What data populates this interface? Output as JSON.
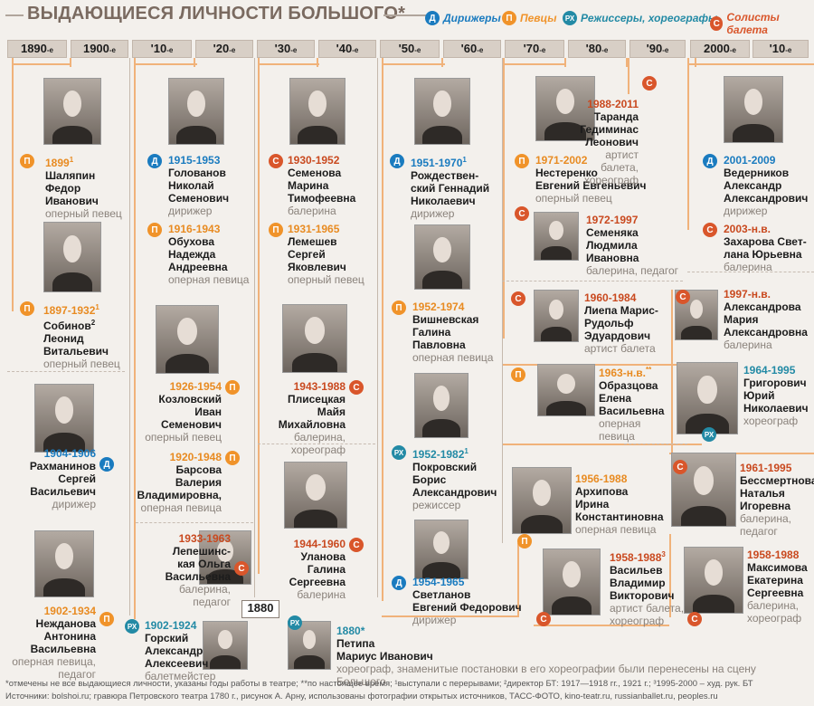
{
  "header": {
    "title": "ВЫДАЮЩИЕСЯ ЛИЧНОСТИ БОЛЬШОГО*",
    "legend": [
      {
        "badge": "Д",
        "label": "Дирижеры",
        "color": "#1a7bbf"
      },
      {
        "badge": "П",
        "label": "Певцы",
        "color": "#f0932a"
      },
      {
        "badge": "РХ",
        "label": "Режиссеры, хореографы",
        "color": "#238aa5"
      },
      {
        "badge": "С",
        "label": "Солисты балета",
        "color": "#d9562b"
      }
    ]
  },
  "decades": [
    "1890",
    "1900",
    "'10",
    "'20",
    "'30",
    "'40",
    "'50",
    "'60",
    "'70",
    "'80",
    "'90",
    "2000",
    "'10"
  ],
  "decade_suffix": "-е",
  "entries": {
    "shalyapin": {
      "badge": "П",
      "years": "1899",
      "sup": "1",
      "name": [
        "Шаляпин",
        "Федор",
        "Иванович"
      ],
      "role": [
        "оперный певец"
      ]
    },
    "sobinov": {
      "badge": "П",
      "years": "1897-1932",
      "sup": "1",
      "name": [
        "Собинов",
        "Леонид",
        "Витальевич"
      ],
      "name_sup": "2",
      "role": [
        "оперный певец"
      ]
    },
    "rakhmaninov": {
      "badge": "Д",
      "years": "1904-1906",
      "name": [
        "Рахманинов",
        "Сергей",
        "Васильевич"
      ],
      "role": [
        "дирижер"
      ]
    },
    "nezhdanova": {
      "badge": "П",
      "years": "1902-1934",
      "name": [
        "Нежданова",
        "Антонина",
        "Васильевна"
      ],
      "role": [
        "оперная певица,",
        "педагог"
      ]
    },
    "golovanov": {
      "badge": "Д",
      "years": "1915-1953",
      "name": [
        "Голованов",
        "Николай",
        "Семенович"
      ],
      "role": [
        "дирижер"
      ]
    },
    "obukhova": {
      "badge": "П",
      "years": "1916-1943",
      "name": [
        "Обухова",
        "Надежда",
        "Андреевна"
      ],
      "role": [
        "оперная певица"
      ]
    },
    "kozlovsky": {
      "badge": "П",
      "years": "1926-1954",
      "name": [
        "Козловский",
        "Иван",
        "Семенович"
      ],
      "role": [
        "оперный певец"
      ]
    },
    "barsova": {
      "badge": "П",
      "years": "1920-1948",
      "name": [
        "Барсова",
        "Валерия",
        "Владимировна,"
      ],
      "role": [
        "оперная певица"
      ]
    },
    "lepeshinskaya": {
      "badge": "С",
      "years": "1933-1963",
      "name": [
        "Лепешинс-",
        "кая Ольга",
        "Васильевна"
      ],
      "role": [
        "балерина,",
        "педагог"
      ]
    },
    "gorsky": {
      "badge": "РХ",
      "years": "1902-1924",
      "name": [
        "Горский",
        "Александр",
        "Алексеевич"
      ],
      "role": [
        "балетмейстер"
      ]
    },
    "semenova": {
      "badge": "С",
      "years": "1930-1952",
      "name": [
        "Семенова",
        "Марина",
        "Тимофеевна"
      ],
      "role": [
        "балерина"
      ]
    },
    "lemeshev": {
      "badge": "П",
      "years": "1931-1965",
      "name": [
        "Лемешев",
        "Сергей",
        "Яковлевич"
      ],
      "role": [
        "оперный певец"
      ]
    },
    "plisetskaya": {
      "badge": "С",
      "years": "1943-1988",
      "name": [
        "Плисецкая",
        "Майя",
        "Михайловна"
      ],
      "role": [
        "балерина,",
        "хореограф"
      ]
    },
    "ulanova": {
      "badge": "С",
      "years": "1944-1960",
      "name": [
        "Уланова",
        "Галина",
        "Сергеевна"
      ],
      "role": [
        "балерина"
      ]
    },
    "rozhdestvensky": {
      "badge": "Д",
      "years": "1951-1970",
      "sup": "1",
      "name": [
        "Рождествен-",
        "ский Геннадий",
        "Николаевич"
      ],
      "role": [
        "дирижер"
      ]
    },
    "vishnevskaya": {
      "badge": "П",
      "years": "1952-1974",
      "name": [
        "Вишневская",
        "Галина",
        "Павловна"
      ],
      "role": [
        "оперная певица"
      ]
    },
    "pokrovsky": {
      "badge": "РХ",
      "years": "1952-1982",
      "sup": "1",
      "name": [
        "Покровский",
        "Борис",
        "Александрович"
      ],
      "role": [
        "режиссер"
      ]
    },
    "svetlanov": {
      "badge": "Д",
      "years": "1954-1965",
      "name": [
        "Светланов",
        "Евгений Федорович"
      ],
      "role": [
        "дирижер"
      ]
    },
    "nesterenko": {
      "badge": "П",
      "years": "1971-2002",
      "name": [
        "Нестеренко",
        "Евгений Евгеньевич"
      ],
      "role": [
        "оперный певец"
      ]
    },
    "semenyaka": {
      "badge": "С",
      "years": "1972-1997",
      "name": [
        "Семеняка",
        "Людмила",
        "Ивановна"
      ],
      "role": [
        "балерина, педагог"
      ]
    },
    "liepa": {
      "badge": "С",
      "years": "1960-1984",
      "name": [
        "Лиепа Марис-",
        "Рудольф",
        "Эдуардович"
      ],
      "role": [
        "артист балета"
      ]
    },
    "obraztsova": {
      "badge": "П",
      "years": "1963-н.в.",
      "sup": "**",
      "name": [
        "Образцова",
        "Елена",
        "Васильевна"
      ],
      "role": [
        "оперная",
        "певица"
      ]
    },
    "arkhipova": {
      "badge": "П",
      "years": "1956-1988",
      "name": [
        "Архипова",
        "Ирина",
        "Константиновна"
      ],
      "role": [
        "оперная певица"
      ]
    },
    "vasiliev": {
      "badge": "С",
      "years": "1958-1988",
      "sup": "3",
      "name": [
        "Васильев",
        "Владимир",
        "Викторович"
      ],
      "role": [
        "артист балета,",
        "хореограф"
      ]
    },
    "taranda": {
      "badge": "С",
      "years": "1988-2011",
      "name": [
        "Таранда",
        "Гедиминас",
        "Леонович"
      ],
      "role": [
        "артист балета,",
        "хореограф"
      ]
    },
    "grigorovich": {
      "badge": "РХ",
      "years": "1964-1995",
      "name": [
        "Григорович",
        "Юрий",
        "Николаевич"
      ],
      "role": [
        "хореограф"
      ]
    },
    "bessmertnova": {
      "badge": "С",
      "years": "1961-1995",
      "name": [
        "Бессмертнова",
        "Наталья",
        "Игоревна"
      ],
      "role": [
        "балерина,",
        "педагог"
      ]
    },
    "maksimova": {
      "badge": "С",
      "years": "1958-1988",
      "name": [
        "Максимова",
        "Екатерина",
        "Сергеевна"
      ],
      "role": [
        "балерина,",
        "хореограф"
      ]
    },
    "vedernikov": {
      "badge": "Д",
      "years": "2001-2009",
      "name": [
        "Ведерников",
        "Александр",
        "Александрович"
      ],
      "role": [
        "дирижер"
      ]
    },
    "zakharova": {
      "badge": "С",
      "years": "2003-н.в.",
      "name": [
        "Захарова Свет-",
        "лана Юрьевна"
      ],
      "role": [
        "балерина"
      ]
    },
    "aleksandrova": {
      "badge": "С",
      "years": "1997-н.в.",
      "name": [
        "Александрова",
        "Мария",
        "Александровна"
      ],
      "role": [
        "балерина"
      ]
    },
    "petipa": {
      "badge": "РХ",
      "years": "1880*",
      "name": [
        "Петипа",
        "Мариус Иванович"
      ],
      "role": [
        "хореограф, знаменитые постановки в его хореографии были перенесены на сцену Большого"
      ]
    }
  },
  "box_1880": "1880",
  "footnotes": [
    "*отмечены не все выдающиеся личности, указаны годы работы в театре; **по настоящее время; ¹выступали с перерывами; ²директор БТ: 1917—1918 гг., 1921 г.; ³1995-2000 – худ. рук. БТ",
    "Источники: bolshoi.ru; гравюра Петровского театра 1780 г., рисунок А. Арну, использованы фотографии открытых источников, ТАСС-ФОТО, kino-teatr.ru, russianballet.ru, peoples.ru"
  ]
}
